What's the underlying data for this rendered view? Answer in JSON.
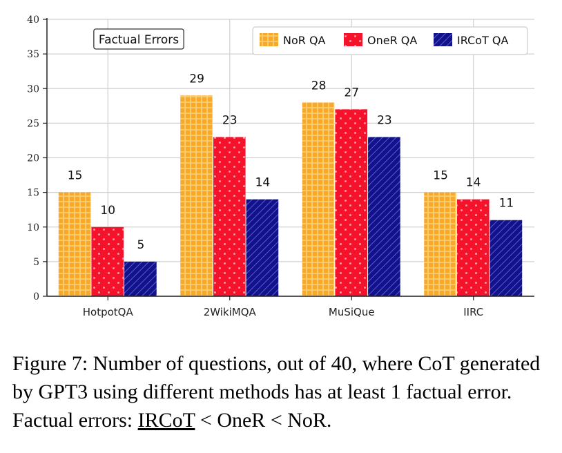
{
  "chart_data": {
    "type": "bar",
    "categories": [
      "HotpotQA",
      "2WikiMQA",
      "MuSiQue",
      "IIRC"
    ],
    "series": [
      {
        "name": "NoR QA",
        "values": [
          15,
          29,
          28,
          15
        ],
        "color": "#f5a623"
      },
      {
        "name": "OneR QA",
        "values": [
          10,
          23,
          27,
          14
        ],
        "color": "#f5132b"
      },
      {
        "name": "IRCoT QA",
        "values": [
          5,
          14,
          23,
          11
        ],
        "color": "#12128a"
      }
    ],
    "annotation": "Factual Errors",
    "ylim": [
      0,
      40
    ],
    "yticks": [
      0,
      5,
      10,
      15,
      20,
      25,
      30,
      35,
      40
    ],
    "grid": true,
    "legend_position": "top-right",
    "xlabel": "",
    "ylabel": ""
  },
  "caption": {
    "prefix": "Figure 7: Number of questions, out of 40, where CoT generated by GPT3 using different methods has at least 1 factual error. Factual errors: ",
    "underlined": "IRCoT",
    "suffix": " < OneR < NoR."
  }
}
